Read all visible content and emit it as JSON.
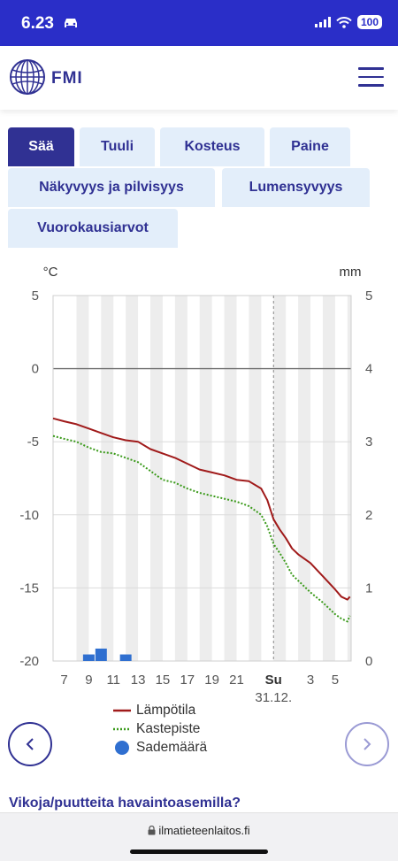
{
  "status_bar": {
    "time": "6.23",
    "battery": "100"
  },
  "header": {
    "logo_text": "FMI"
  },
  "tabs": [
    {
      "label": "Sää",
      "active": true
    },
    {
      "label": "Tuuli",
      "active": false
    },
    {
      "label": "Kosteus",
      "active": false
    },
    {
      "label": "Paine",
      "active": false
    },
    {
      "label": "Näkyvyys ja pilvisyys",
      "active": false
    },
    {
      "label": "Lumensyvyys",
      "active": false
    },
    {
      "label": "Vuorokausiarvot",
      "active": false
    }
  ],
  "chart_data": {
    "type": "line",
    "left_unit": "°C",
    "right_unit": "mm",
    "y_left_ticks": [
      5,
      0,
      -5,
      -10,
      -15,
      -20
    ],
    "y_right_ticks": [
      5,
      4,
      3,
      2,
      1,
      0
    ],
    "ylim_left": [
      -20,
      5
    ],
    "ylim_right": [
      0,
      5
    ],
    "x_tick_labels": [
      "7",
      "9",
      "11",
      "13",
      "15",
      "17",
      "19",
      "21",
      "Su",
      "3",
      "5"
    ],
    "x_tick_hours": [
      7,
      9,
      11,
      13,
      15,
      17,
      19,
      21,
      24,
      27,
      29
    ],
    "date_label": "31.12.",
    "xlim_hours": [
      6.1,
      30.3
    ],
    "day_boundary_hour": 24,
    "grid": true,
    "series": [
      {
        "name": "Lämpötila",
        "color": "#a01a1a",
        "x": [
          6.1,
          7,
          8,
          9,
          10,
          11,
          12,
          13,
          14,
          15,
          16,
          17,
          18,
          19,
          20,
          21,
          22,
          23,
          23.5,
          24,
          24.5,
          25,
          25.5,
          26,
          27,
          28,
          29,
          29.5,
          30,
          30.2
        ],
        "y": [
          -3.4,
          -3.6,
          -3.8,
          -4.1,
          -4.4,
          -4.7,
          -4.9,
          -5.0,
          -5.5,
          -5.8,
          -6.1,
          -6.5,
          -6.9,
          -7.1,
          -7.3,
          -7.6,
          -7.7,
          -8.2,
          -9.0,
          -10.3,
          -11.0,
          -11.6,
          -12.3,
          -12.7,
          -13.3,
          -14.2,
          -15.1,
          -15.6,
          -15.8,
          -15.6
        ]
      },
      {
        "name": "Kastepiste",
        "color": "#3a9a1a",
        "x": [
          6.1,
          7,
          8,
          9,
          10,
          11,
          12,
          13,
          14,
          15,
          16,
          17,
          18,
          19,
          20,
          21,
          22,
          23,
          23.5,
          24,
          24.5,
          25,
          25.5,
          26,
          27,
          28,
          29,
          29.5,
          30,
          30.2
        ],
        "y": [
          -4.6,
          -4.8,
          -5.0,
          -5.4,
          -5.7,
          -5.8,
          -6.1,
          -6.4,
          -7.0,
          -7.6,
          -7.8,
          -8.2,
          -8.5,
          -8.7,
          -8.9,
          -9.1,
          -9.4,
          -10.0,
          -10.8,
          -12.0,
          -12.6,
          -13.3,
          -14.1,
          -14.5,
          -15.3,
          -16.0,
          -16.8,
          -17.1,
          -17.3,
          -16.9
        ]
      }
    ],
    "bars": {
      "name": "Sademäärä",
      "color": "#2f6fd0",
      "x": [
        9,
        10,
        12
      ],
      "y": [
        0.09,
        0.17,
        0.09
      ]
    }
  },
  "legend": [
    {
      "label": "Lämpötila",
      "color": "#a01a1a",
      "style": "line"
    },
    {
      "label": "Kastepiste",
      "color": "#3a9a1a",
      "style": "dotted"
    },
    {
      "label": "Sademäärä",
      "color": "#2f6fd0",
      "style": "dot"
    }
  ],
  "footer_link": "Vikoja/puutteita havaintoasemilla?",
  "url_bar": {
    "url": "ilmatieteenlaitos.fi"
  }
}
